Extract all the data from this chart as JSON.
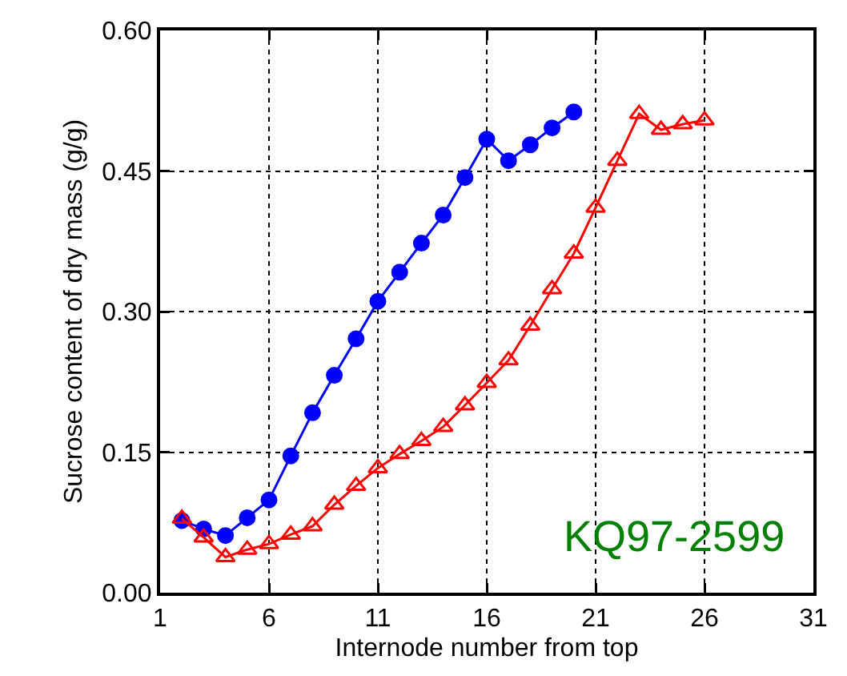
{
  "chart_data": {
    "type": "line",
    "xlabel": "Internode number from top",
    "ylabel": "Sucrose content of dry mass (g/g)",
    "xlim": [
      1,
      31
    ],
    "xticks": [
      1,
      6,
      11,
      16,
      21,
      26,
      31
    ],
    "ylim": [
      0,
      0.6
    ],
    "yticks": [
      {
        "value": 0,
        "label": "0.00"
      },
      {
        "value": 0.15,
        "label": "0.15"
      },
      {
        "value": 0.3,
        "label": "0.30"
      },
      {
        "value": 0.45,
        "label": "0.45"
      },
      {
        "value": 0.6,
        "label": "0.60"
      }
    ],
    "grid": true,
    "line_style": "solid",
    "series": [
      {
        "color": "#0000ff",
        "marker": "circle",
        "x": [
          2,
          3,
          4,
          5,
          6,
          7,
          8,
          9,
          10,
          11,
          12,
          13,
          14,
          15,
          16,
          17,
          18,
          19,
          20
        ],
        "values": [
          0.077,
          0.068,
          0.061,
          0.08,
          0.099,
          0.146,
          0.192,
          0.232,
          0.271,
          0.311,
          0.342,
          0.373,
          0.403,
          0.443,
          0.484,
          0.461,
          0.478,
          0.496,
          0.513
        ]
      },
      {
        "color": "#ff0000",
        "marker": "triangle",
        "x": [
          2,
          3,
          4,
          5,
          6,
          7,
          8,
          9,
          10,
          11,
          12,
          13,
          14,
          15,
          16,
          17,
          18,
          19,
          20,
          21,
          22,
          23,
          24,
          25,
          26
        ],
        "values": [
          0.079,
          0.059,
          0.038,
          0.046,
          0.052,
          0.062,
          0.071,
          0.094,
          0.114,
          0.133,
          0.148,
          0.162,
          0.177,
          0.2,
          0.224,
          0.248,
          0.285,
          0.324,
          0.362,
          0.411,
          0.461,
          0.511,
          0.494,
          0.5,
          0.504
        ]
      }
    ],
    "annotations": [
      "KQ97-2599"
    ]
  }
}
